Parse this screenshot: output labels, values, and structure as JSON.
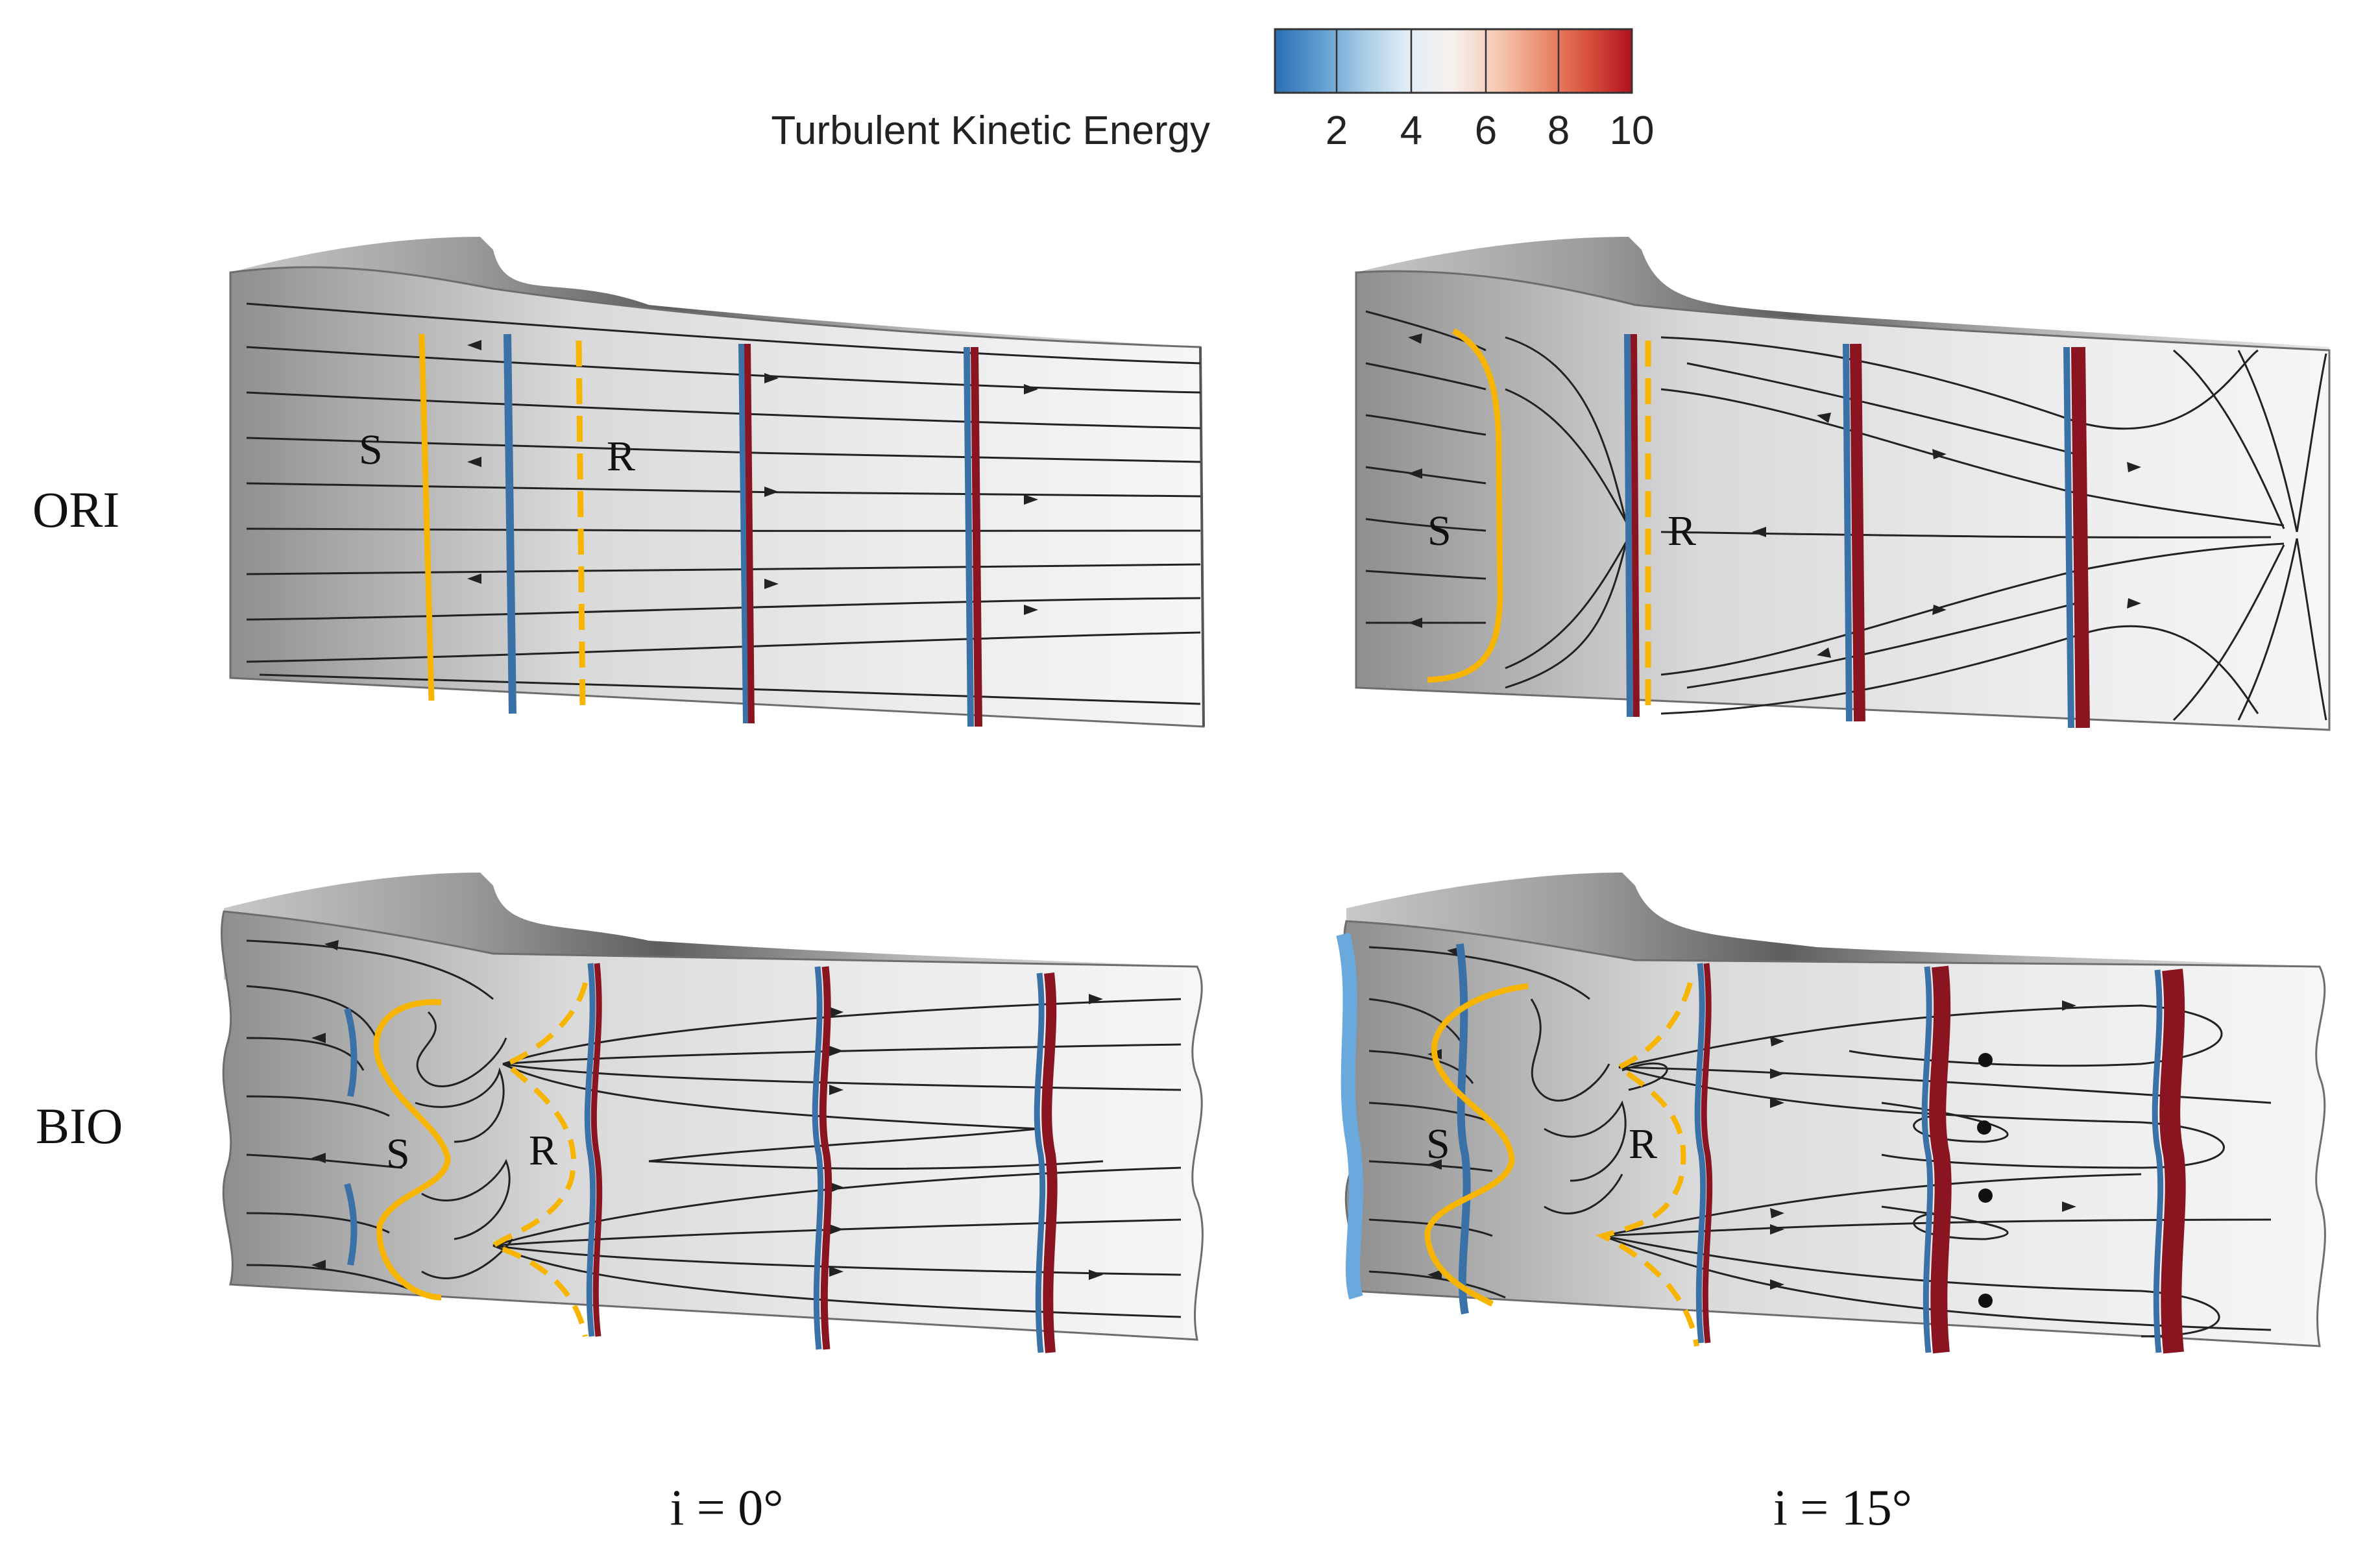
{
  "colorbar": {
    "title": "Turbulent Kinetic Energy",
    "ticks": [
      "2",
      "4",
      "6",
      "8",
      "10"
    ],
    "min": 0,
    "max": 10,
    "colors": [
      "#2b6fb3",
      "#5d9ccf",
      "#a9cde6",
      "#e3eef6",
      "#f7f0ee",
      "#f6c8b2",
      "#ec8e70",
      "#d9523c",
      "#b1121f"
    ]
  },
  "rows": [
    {
      "label": "ORI"
    },
    {
      "label": "BIO"
    }
  ],
  "columns": [
    {
      "label": "i = 0°"
    },
    {
      "label": "i = 15°"
    }
  ],
  "markers": {
    "separation": "S",
    "reattachment": "R"
  },
  "colors": {
    "separation_line": "#f7b500",
    "low_tke_band": "#3a72a8",
    "high_tke_band": "#8a1420",
    "streamline": "#222222",
    "surface_light": "#f2f2f2",
    "surface_dark": "#8a8a8a"
  }
}
